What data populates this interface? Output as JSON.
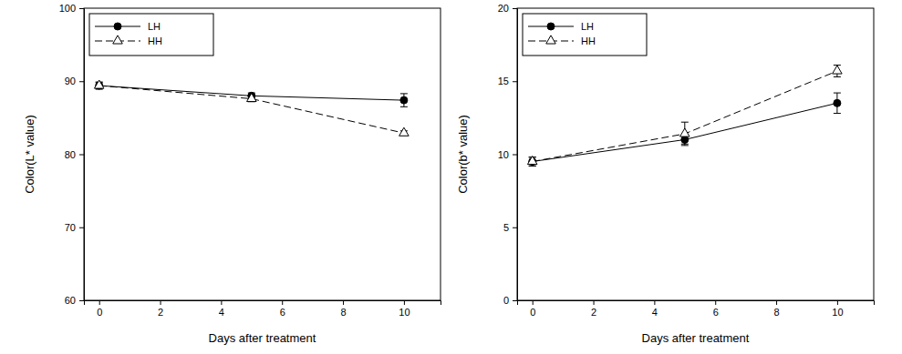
{
  "chart_data": [
    {
      "type": "line",
      "x_label": "Days after treatment",
      "y_label": "Color(L* value)",
      "x": [
        0,
        5,
        10
      ],
      "xlim": [
        -0.5,
        11.2
      ],
      "xticks": [
        0,
        2,
        4,
        6,
        8,
        10
      ],
      "ylim": [
        60,
        100
      ],
      "yticks": [
        60,
        70,
        80,
        90,
        100
      ],
      "legend": "top-left",
      "series": [
        {
          "name": "LH",
          "color": "#000000",
          "marker": "circle",
          "line_style": "solid",
          "values": [
            89.4,
            88.0,
            87.4
          ],
          "errors": [
            0.4,
            0.4,
            0.9
          ]
        },
        {
          "name": "HH",
          "color": "#000000",
          "marker": "open-triangle",
          "line_style": "dashed",
          "values": [
            89.4,
            87.6,
            82.9
          ],
          "errors": [
            0.5,
            0.4,
            0.3
          ]
        }
      ]
    },
    {
      "type": "line",
      "x_label": "Days after treatment",
      "y_label": "Color(b* value)",
      "x": [
        0,
        5,
        10
      ],
      "xlim": [
        -0.5,
        11.2
      ],
      "xticks": [
        0,
        2,
        4,
        6,
        8,
        10
      ],
      "ylim": [
        0,
        20
      ],
      "yticks": [
        0,
        5,
        10,
        15,
        20
      ],
      "legend": "top-left",
      "series": [
        {
          "name": "LH",
          "color": "#000000",
          "marker": "circle",
          "line_style": "solid",
          "values": [
            9.5,
            11.0,
            13.5
          ],
          "errors": [
            0.3,
            0.3,
            0.7
          ]
        },
        {
          "name": "HH",
          "color": "#000000",
          "marker": "open-triangle",
          "line_style": "dashed",
          "values": [
            9.5,
            11.4,
            15.7
          ],
          "errors": [
            0.3,
            0.8,
            0.4
          ]
        }
      ]
    }
  ]
}
